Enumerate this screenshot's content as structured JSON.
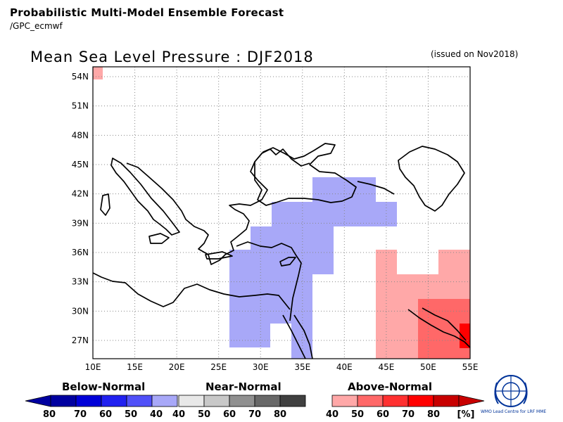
{
  "header": {
    "line1": "Probabilistic Multi-Model Ensemble Forecast",
    "line2": "/GPC_ecmwf"
  },
  "map": {
    "title": "Mean Sea Level Pressure : DJF2018",
    "issued": "(issued on Nov2018)",
    "lon_range": [
      10,
      55
    ],
    "lat_range": [
      25,
      55
    ],
    "lon_ticks": [
      "10E",
      "15E",
      "20E",
      "25E",
      "30E",
      "35E",
      "40E",
      "45E",
      "50E",
      "55E"
    ],
    "lat_ticks": [
      "54N",
      "51N",
      "48N",
      "45N",
      "42N",
      "39N",
      "36N",
      "33N",
      "30N",
      "27N"
    ],
    "grid": true
  },
  "legend": {
    "below": {
      "label": "Below-Normal",
      "ticks": [
        "80",
        "70",
        "60",
        "50",
        "40"
      ],
      "colors": [
        "#0000a0",
        "#0000d8",
        "#2020f0",
        "#5050f8",
        "#a8a8f8"
      ]
    },
    "near": {
      "label": "Near-Normal",
      "ticks": [
        "40",
        "50",
        "60",
        "70",
        "80"
      ],
      "colors": [
        "#e8e8e8",
        "#c8c8c8",
        "#909090",
        "#686868",
        "#404040"
      ]
    },
    "above": {
      "label": "Above-Normal",
      "ticks": [
        "40",
        "50",
        "60",
        "70",
        "80"
      ],
      "colors": [
        "#ffa8a8",
        "#ff6868",
        "#ff3030",
        "#ff0000",
        "#c80000"
      ],
      "unit": "[%]"
    }
  },
  "logo": {
    "text": "WMO Lead Centre for LRF MME"
  }
}
